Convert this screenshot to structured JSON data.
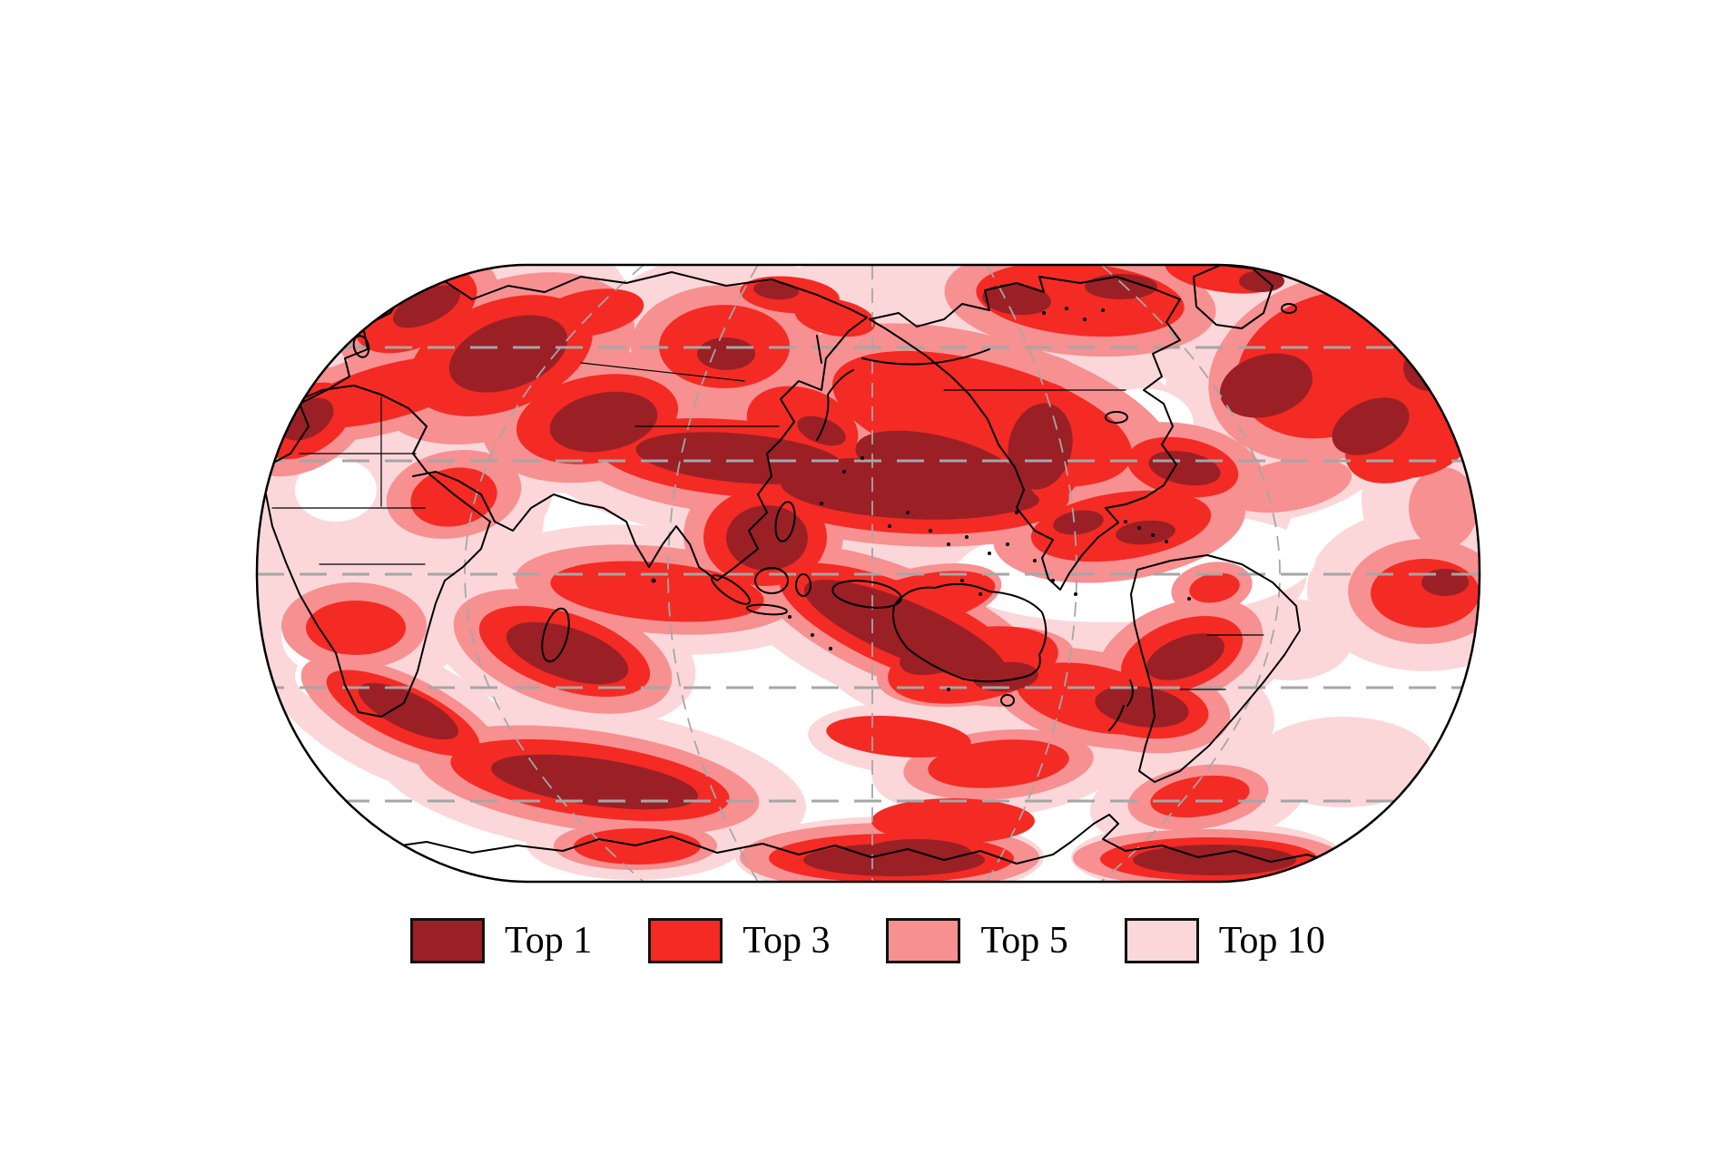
{
  "legend": {
    "items": [
      {
        "label": "Top 1",
        "color": "#9a2026"
      },
      {
        "label": "Top 3",
        "color": "#f32b24"
      },
      {
        "label": "Top 5",
        "color": "#f79091"
      },
      {
        "label": "Top 10",
        "color": "#fbd7da"
      }
    ]
  },
  "map": {
    "background_color": "#ffffff",
    "outline_color": "#000000",
    "coastline_color": "#000000",
    "gridline_color": "#a6a6a6"
  }
}
